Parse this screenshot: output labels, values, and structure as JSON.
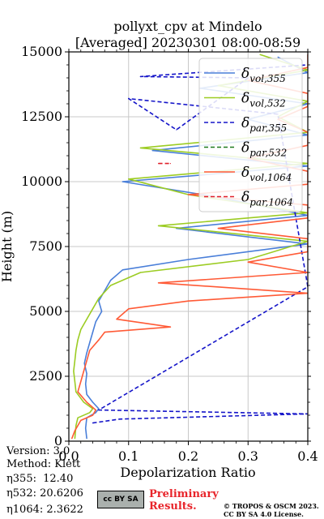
{
  "chart_data": {
    "type": "line",
    "title_line1": "pollyxt_cpv at Mindelo",
    "title_line2": "[Averaged] 20230301 08:00-08:59",
    "xlabel": "Depolarization Ratio",
    "ylabel": "Height (m)",
    "xlim": [
      0.0,
      0.4
    ],
    "ylim": [
      0,
      15000
    ],
    "xticks": [
      "0.0",
      "0.1",
      "0.2",
      "0.3",
      "0.4"
    ],
    "yticks": [
      "0",
      "2500",
      "5000",
      "7500",
      "10000",
      "12500",
      "15000"
    ],
    "grid": true,
    "legend_position": "top-right",
    "series": [
      {
        "key": "vol355",
        "name": "δvol,355",
        "sym": "δ",
        "sub": "vol,355",
        "color": "#4a7fd9",
        "dash": "solid",
        "points": [
          [
            0.03,
            100
          ],
          [
            0.028,
            500
          ],
          [
            0.03,
            900
          ],
          [
            0.045,
            1100
          ],
          [
            0.05,
            1250
          ],
          [
            0.04,
            1500
          ],
          [
            0.03,
            1800
          ],
          [
            0.028,
            2200
          ],
          [
            0.03,
            2600
          ],
          [
            0.026,
            3000
          ],
          [
            0.03,
            3400
          ],
          [
            0.035,
            3800
          ],
          [
            0.04,
            4200
          ],
          [
            0.045,
            4600
          ],
          [
            0.055,
            5000
          ],
          [
            0.05,
            5400
          ],
          [
            0.06,
            5800
          ],
          [
            0.07,
            6200
          ],
          [
            0.09,
            6600
          ],
          [
            0.2,
            7000
          ],
          [
            0.4,
            7600
          ],
          [
            0.18,
            8200
          ],
          [
            0.4,
            8700
          ],
          [
            0.25,
            9400
          ],
          [
            0.09,
            10000
          ],
          [
            0.4,
            10600
          ],
          [
            0.14,
            11200
          ],
          [
            0.4,
            11800
          ],
          [
            0.3,
            12400
          ],
          [
            0.4,
            13000
          ],
          [
            0.22,
            13600
          ],
          [
            0.4,
            14200
          ],
          [
            0.35,
            14800
          ]
        ]
      },
      {
        "key": "vol532",
        "name": "δvol,532",
        "sym": "δ",
        "sub": "vol,532",
        "color": "#9ccc23",
        "dash": "solid",
        "points": [
          [
            0.01,
            100
          ],
          [
            0.012,
            600
          ],
          [
            0.015,
            900
          ],
          [
            0.035,
            1100
          ],
          [
            0.04,
            1250
          ],
          [
            0.025,
            1500
          ],
          [
            0.012,
            1900
          ],
          [
            0.01,
            2300
          ],
          [
            0.008,
            2700
          ],
          [
            0.01,
            3100
          ],
          [
            0.012,
            3500
          ],
          [
            0.015,
            3900
          ],
          [
            0.02,
            4300
          ],
          [
            0.03,
            4700
          ],
          [
            0.04,
            5100
          ],
          [
            0.05,
            5500
          ],
          [
            0.07,
            6000
          ],
          [
            0.12,
            6500
          ],
          [
            0.3,
            7000
          ],
          [
            0.4,
            7700
          ],
          [
            0.15,
            8300
          ],
          [
            0.4,
            8800
          ],
          [
            0.2,
            9500
          ],
          [
            0.1,
            10100
          ],
          [
            0.4,
            10700
          ],
          [
            0.12,
            11300
          ],
          [
            0.4,
            11900
          ],
          [
            0.35,
            12500
          ],
          [
            0.4,
            13100
          ],
          [
            0.25,
            13700
          ],
          [
            0.4,
            14300
          ],
          [
            0.32,
            14900
          ]
        ]
      },
      {
        "key": "par355",
        "name": "δpar,355",
        "sym": "δ",
        "sub": "par,355",
        "color": "#1515c9",
        "dash": "dashed",
        "points": [
          [
            0.04,
            700
          ],
          [
            0.085,
            850
          ],
          [
            0.4,
            1050
          ],
          [
            0.05,
            1200
          ],
          [
            0.4,
            5950
          ],
          [
            0.35,
            12600
          ],
          [
            0.1,
            13200
          ],
          [
            0.18,
            12000
          ],
          [
            0.3,
            14000
          ],
          [
            0.12,
            14050
          ],
          [
            0.4,
            14500
          ]
        ]
      },
      {
        "key": "par532",
        "name": "δpar,532",
        "sym": "δ",
        "sub": "par,532",
        "color": "#1f7a1f",
        "dash": "dashed",
        "points": []
      },
      {
        "key": "vol1064",
        "name": "δvol,1064",
        "sym": "δ",
        "sub": "vol,1064",
        "color": "#ff5a36",
        "dash": "solid",
        "points": [
          [
            0.005,
            100
          ],
          [
            0.01,
            400
          ],
          [
            0.02,
            800
          ],
          [
            0.04,
            1000
          ],
          [
            0.045,
            1200
          ],
          [
            0.03,
            1500
          ],
          [
            0.015,
            1900
          ],
          [
            0.02,
            2300
          ],
          [
            0.025,
            2700
          ],
          [
            0.03,
            3100
          ],
          [
            0.035,
            3500
          ],
          [
            0.05,
            3900
          ],
          [
            0.06,
            4200
          ],
          [
            0.17,
            4400
          ],
          [
            0.08,
            4700
          ],
          [
            0.1,
            5100
          ],
          [
            0.2,
            5400
          ],
          [
            0.4,
            5700
          ],
          [
            0.15,
            6100
          ],
          [
            0.4,
            6500
          ],
          [
            0.3,
            6900
          ],
          [
            0.4,
            7300
          ],
          [
            0.4,
            7800
          ],
          [
            0.25,
            8200
          ],
          [
            0.4,
            8600
          ],
          [
            0.4,
            9100
          ],
          [
            0.2,
            9500
          ],
          [
            0.4,
            9900
          ],
          [
            0.4,
            10400
          ],
          [
            0.3,
            10900
          ],
          [
            0.4,
            11400
          ],
          [
            0.4,
            11900
          ],
          [
            0.35,
            12400
          ],
          [
            0.4,
            12900
          ],
          [
            0.4,
            13400
          ],
          [
            0.3,
            13900
          ],
          [
            0.4,
            14400
          ],
          [
            0.4,
            14900
          ]
        ]
      },
      {
        "key": "par1064",
        "name": "δpar,1064",
        "sym": "δ",
        "sub": "par,1064",
        "color": "#e0202a",
        "dash": "dashed",
        "points": [
          [
            0.15,
            10700
          ],
          [
            0.17,
            10700
          ]
        ]
      }
    ]
  },
  "footer": {
    "version": "Version: 3.0",
    "method": "Method: Klett",
    "eta355_label": "η355:",
    "eta355_value": "12.40",
    "eta532_label": "η532:",
    "eta532_value": "20.6206",
    "eta1064_label": "η1064:",
    "eta1064_value": "2.3622",
    "cc_badge": "cc BY SA",
    "preliminary_line1": "Preliminary",
    "preliminary_line2": "Results.",
    "copyright_line1": "© TROPOS & OSCM 2023.",
    "copyright_line2": "CC BY SA 4.0 License."
  }
}
